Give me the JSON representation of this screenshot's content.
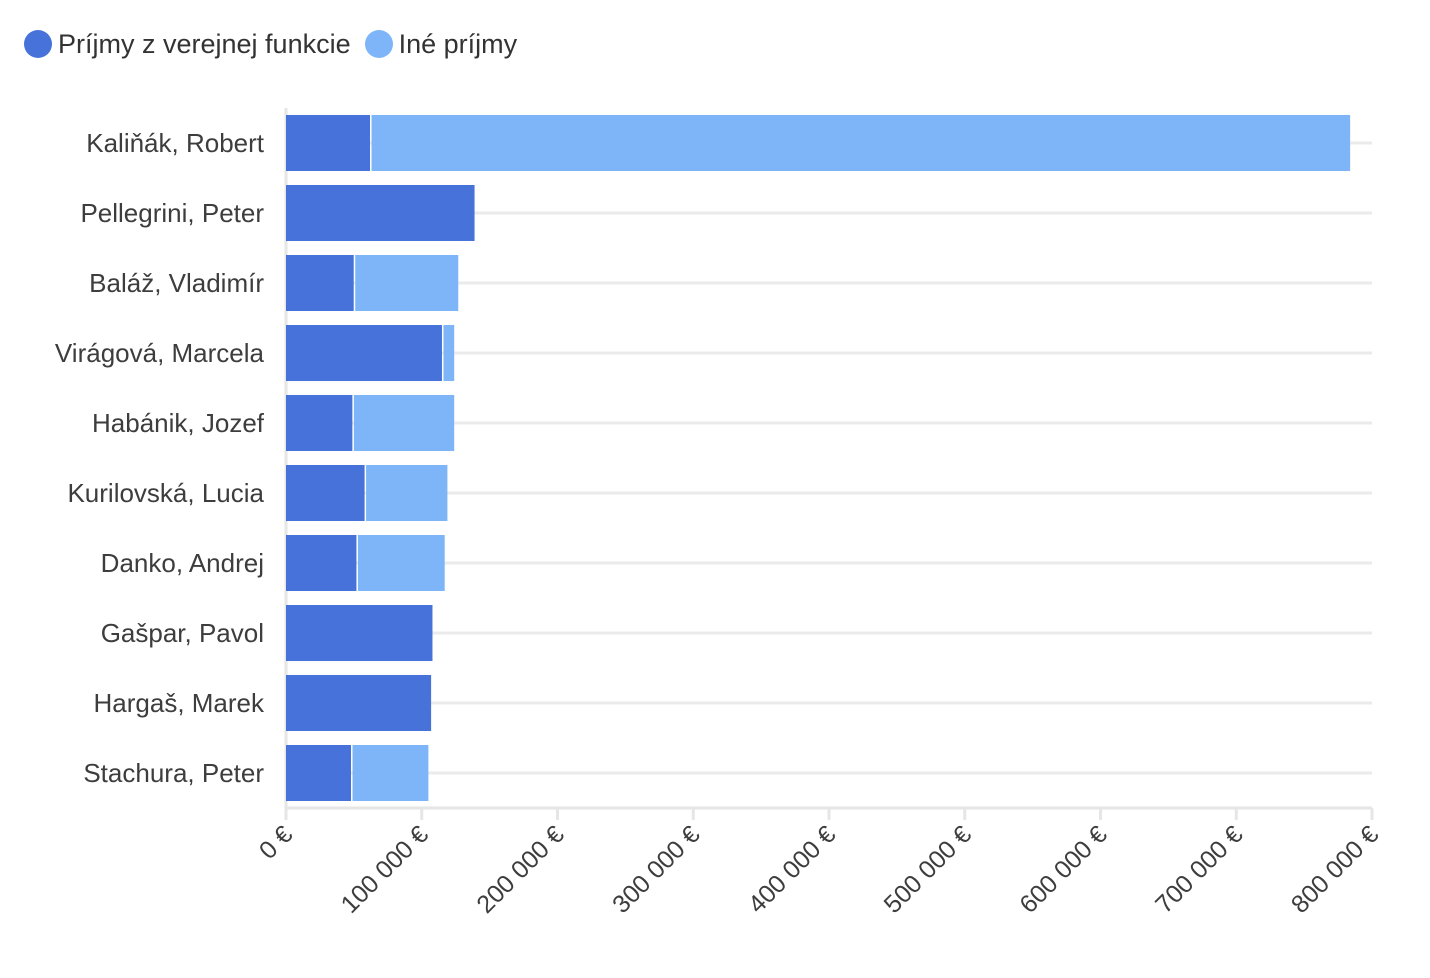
{
  "chart_data": {
    "type": "bar",
    "orientation": "horizontal",
    "stacked": true,
    "categories": [
      "Kaliňák, Robert",
      "Pellegrini, Peter",
      "Baláž, Vladimír",
      "Virágová, Marcela",
      "Habánik, Jozef",
      "Kurilovská, Lucia",
      "Danko, Andrej",
      "Gašpar, Pavol",
      "Hargaš, Marek",
      "Stachura, Peter"
    ],
    "series": [
      {
        "name": "Príjmy z verejnej funkcie",
        "color": "#4672da",
        "values": [
          63000,
          140000,
          51000,
          116000,
          50000,
          59000,
          53000,
          109000,
          108000,
          49000
        ]
      },
      {
        "name": "Iné príjmy",
        "color": "#7db5f8",
        "values": [
          722000,
          0,
          77000,
          9000,
          75000,
          61000,
          65000,
          0,
          0,
          57000
        ]
      }
    ],
    "xlim": [
      0,
      800000
    ],
    "x_ticks": [
      0,
      100000,
      200000,
      300000,
      400000,
      500000,
      600000,
      700000,
      800000
    ],
    "x_tick_labels": [
      "0 €",
      "100 000 €",
      "200 000 €",
      "300 000 €",
      "400 000 €",
      "500 000 €",
      "600 000 €",
      "700 000 €",
      "800 000 €"
    ],
    "xlabel": "",
    "ylabel": "",
    "grid": true,
    "legend_position": "top-left"
  }
}
